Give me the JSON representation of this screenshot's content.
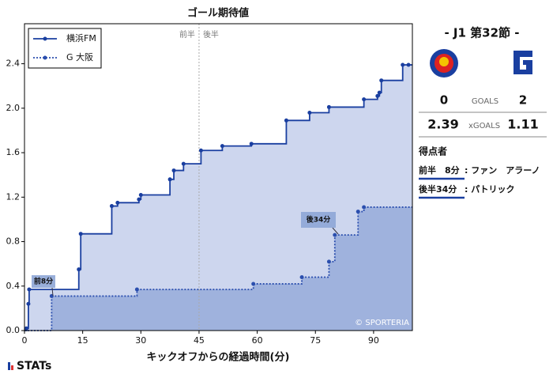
{
  "chart_data": {
    "type": "line",
    "title": "ゴール期待値",
    "xlabel": "キックオフからの経過時間(分)",
    "xlim": [
      0,
      100
    ],
    "ylim": [
      0,
      2.76
    ],
    "xticks": [
      0,
      15,
      30,
      45,
      60,
      75,
      90
    ],
    "yticks": [
      {
        "value": 0,
        "label": "0.0"
      },
      0.4,
      0.8,
      1.2,
      1.6,
      {
        "value": 2,
        "label": "2.0"
      },
      2.4
    ],
    "half_labels": [
      "前半",
      "後半"
    ],
    "series": [
      {
        "name": "横浜FM",
        "color": "#1a3fa0",
        "fill": "#cdd6ee",
        "dash": false,
        "x": [
          0,
          0.5,
          1,
          1.2,
          14,
          14.5,
          22.5,
          24,
          29.5,
          30,
          37.5,
          38.5,
          41,
          45.5,
          51,
          58.5,
          67.5,
          73.5,
          78.5,
          87.5,
          91,
          91.5,
          92,
          97.5,
          99,
          100
        ],
        "values": [
          0,
          0.02,
          0.24,
          0.37,
          0.55,
          0.87,
          1.12,
          1.15,
          1.18,
          1.22,
          1.36,
          1.44,
          1.5,
          1.62,
          1.66,
          1.68,
          1.89,
          1.96,
          2.01,
          2.08,
          2.11,
          2.14,
          2.25,
          2.39,
          2.39,
          2.39
        ]
      },
      {
        "name": "G 大阪",
        "color": "#2b4fae",
        "fill": "#9fb2dd",
        "dash": true,
        "x": [
          0,
          7,
          29,
          59,
          71.5,
          78.5,
          80,
          86,
          87.5,
          100
        ],
        "values": [
          0,
          0.31,
          0.37,
          0.42,
          0.48,
          0.62,
          0.86,
          1.07,
          1.11,
          1.11
        ]
      }
    ],
    "annotations": [
      "前8分",
      "後34分"
    ],
    "credit": "© SPORTERIA"
  },
  "match": {
    "round": "- J1 第32節 -",
    "home_goals": "0",
    "goals_label": "GOALS",
    "away_goals": "2",
    "home_xg": "2.39",
    "xg_label": "xGOALS",
    "away_xg": "1.11",
    "scorers_title": "得点者",
    "scorers": [
      {
        "time": "前半　8分",
        "player": ": ファン　アラーノ"
      },
      {
        "time": "後半34分",
        "player": ": パトリック"
      }
    ]
  },
  "logo": "STATs"
}
